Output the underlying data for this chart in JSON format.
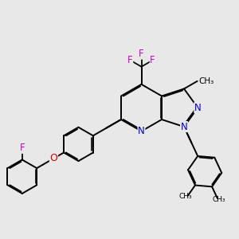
{
  "bg_color": "#e8e8e8",
  "bond_color": "#000000",
  "N_color": "#0000cc",
  "O_color": "#cc0000",
  "F_color": "#cc00cc",
  "line_width": 1.4,
  "dbo": 0.05,
  "figsize": [
    3.0,
    3.0
  ],
  "dpi": 100,
  "xlim": [
    0,
    10
  ],
  "ylim": [
    0,
    10
  ]
}
